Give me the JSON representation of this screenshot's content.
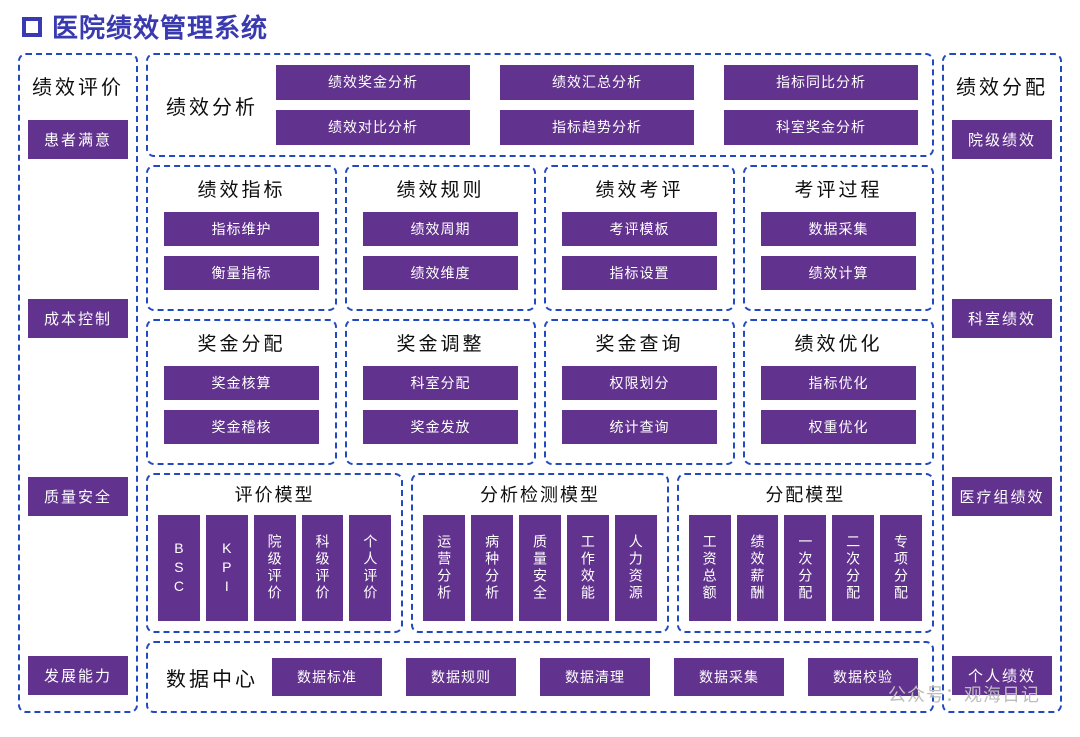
{
  "colors": {
    "accent_blue": "#3a3ab0",
    "dash_border": "#224ac0",
    "box_fill": "#62328f",
    "box_text": "#ffffff",
    "title_text": "#0e0e0e",
    "background": "#ffffff"
  },
  "page_title": "医院绩效管理系统",
  "left_column": {
    "title": "绩效评价",
    "items": [
      "患者满意",
      "成本控制",
      "质量安全",
      "发展能力"
    ]
  },
  "right_column": {
    "title": "绩效分配",
    "items": [
      "院级绩效",
      "科室绩效",
      "医疗组绩效",
      "个人绩效"
    ]
  },
  "center": {
    "analysis": {
      "title": "绩效分析",
      "items": [
        "绩效奖金分析",
        "绩效汇总分析",
        "指标同比分析",
        "绩效对比分析",
        "指标趋势分析",
        "科室奖金分析"
      ]
    },
    "quad_row_1": [
      {
        "title": "绩效指标",
        "items": [
          "指标维护",
          "衡量指标"
        ]
      },
      {
        "title": "绩效规则",
        "items": [
          "绩效周期",
          "绩效维度"
        ]
      },
      {
        "title": "绩效考评",
        "items": [
          "考评模板",
          "指标设置"
        ]
      },
      {
        "title": "考评过程",
        "items": [
          "数据采集",
          "绩效计算"
        ]
      }
    ],
    "quad_row_2": [
      {
        "title": "奖金分配",
        "items": [
          "奖金核算",
          "奖金稽核"
        ]
      },
      {
        "title": "奖金调整",
        "items": [
          "科室分配",
          "奖金发放"
        ]
      },
      {
        "title": "奖金查询",
        "items": [
          "权限划分",
          "统计查询"
        ]
      },
      {
        "title": "绩效优化",
        "items": [
          "指标优化",
          "权重优化"
        ]
      }
    ],
    "models": [
      {
        "title": "评价模型",
        "items": [
          "BSC",
          "KPI",
          "院级评价",
          "科级评价",
          "个人评价"
        ]
      },
      {
        "title": "分析检测模型",
        "items": [
          "运营分析",
          "病种分析",
          "质量安全",
          "工作效能",
          "人力资源"
        ]
      },
      {
        "title": "分配模型",
        "items": [
          "工资总额",
          "绩效薪酬",
          "一次分配",
          "二次分配",
          "专项分配"
        ]
      }
    ],
    "data_center": {
      "title": "数据中心",
      "items": [
        "数据标准",
        "数据规则",
        "数据清理",
        "数据采集",
        "数据校验"
      ]
    }
  },
  "watermark": "公众号：观海日记"
}
